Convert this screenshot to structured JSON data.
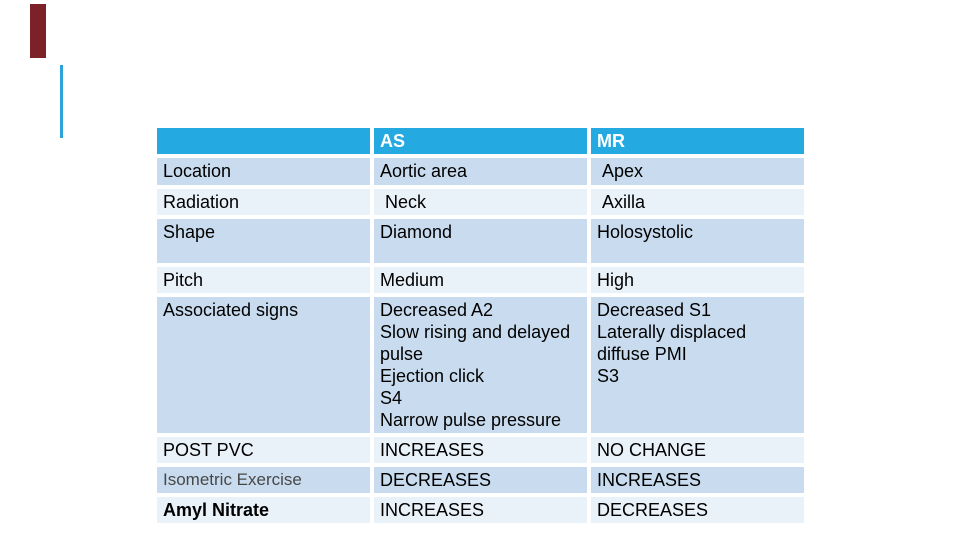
{
  "slide": {
    "accent_bar_color": "#7b2127",
    "accent_line_color": "#2da3d8",
    "background_color": "#ffffff"
  },
  "table": {
    "header": {
      "col1": "",
      "col2": "AS",
      "col3": "MR",
      "bg_color": "#24a9e1",
      "text_color": "#ffffff"
    },
    "row_bg_dark": "#c9dcef",
    "row_bg_light": "#e9f1f9",
    "body_text_color": "#000000",
    "rows": [
      {
        "label": "Location",
        "as": "Aortic area",
        "mr": " Apex"
      },
      {
        "label": "Radiation",
        "as": " Neck",
        "mr": " Axilla"
      },
      {
        "label": "Shape",
        "as": "Diamond",
        "mr": "Holosystolic"
      },
      {
        "label": "Pitch",
        "as": "Medium",
        "mr": "High"
      },
      {
        "label": "Associated signs",
        "as": "Decreased A2\nSlow rising and delayed pulse\nEjection click\nS4\nNarrow pulse pressure",
        "mr": "Decreased S1\nLaterally displaced diffuse PMI\nS3"
      },
      {
        "label": "POST PVC",
        "as": "INCREASES",
        "mr": "NO CHANGE"
      },
      {
        "label": "Isometric Exercise",
        "as": "DECREASES",
        "mr": "INCREASES"
      },
      {
        "label": "Amyl Nitrate",
        "as": "INCREASES",
        "mr": "DECREASES"
      }
    ]
  }
}
